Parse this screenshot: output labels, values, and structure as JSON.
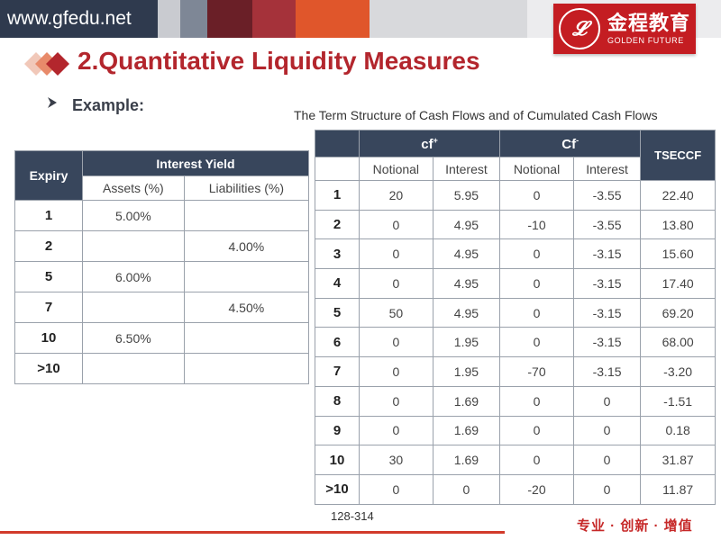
{
  "header": {
    "site": "www.gfedu.net",
    "logo_cn": "金程教育",
    "logo_en": "GOLDEN FUTURE",
    "logo_seal": "𝓛"
  },
  "title": "2.Quantitative Liquidity Measures",
  "example_label": "Example:",
  "caption": "The Term Structure of Cash Flows and of Cumulated Cash Flows",
  "left_table": {
    "col_expiry": "Expiry",
    "col_group": "Interest Yield",
    "col_assets": "Assets (%)",
    "col_liabilities": "Liabilities (%)",
    "rows": [
      {
        "expiry": "1",
        "assets": "5.00%",
        "liabilities": ""
      },
      {
        "expiry": "2",
        "assets": "",
        "liabilities": "4.00%"
      },
      {
        "expiry": "5",
        "assets": "6.00%",
        "liabilities": ""
      },
      {
        "expiry": "7",
        "assets": "",
        "liabilities": "4.50%"
      },
      {
        "expiry": "10",
        "assets": "6.50%",
        "liabilities": ""
      },
      {
        "expiry": ">10",
        "assets": "",
        "liabilities": ""
      }
    ]
  },
  "right_table": {
    "group_cf_plus": "cf",
    "group_cf_plus_sup": "+",
    "group_cf_minus": "Cf",
    "group_cf_minus_sup": "-",
    "col_tseccf": "TSECCF",
    "col_notional": "Notional",
    "col_interest": "Interest",
    "rows": [
      [
        "1",
        "20",
        "5.95",
        "0",
        "-3.55",
        "22.40"
      ],
      [
        "2",
        "0",
        "4.95",
        "-10",
        "-3.55",
        "13.80"
      ],
      [
        "3",
        "0",
        "4.95",
        "0",
        "-3.15",
        "15.60"
      ],
      [
        "4",
        "0",
        "4.95",
        "0",
        "-3.15",
        "17.40"
      ],
      [
        "5",
        "50",
        "4.95",
        "0",
        "-3.15",
        "69.20"
      ],
      [
        "6",
        "0",
        "1.95",
        "0",
        "-3.15",
        "68.00"
      ],
      [
        "7",
        "0",
        "1.95",
        "-70",
        "-3.15",
        "-3.20"
      ],
      [
        "8",
        "0",
        "1.69",
        "0",
        "0",
        "-1.51"
      ],
      [
        "9",
        "0",
        "1.69",
        "0",
        "0",
        "0.18"
      ],
      [
        "10",
        "30",
        "1.69",
        "0",
        "0",
        "31.87"
      ],
      [
        ">10",
        "0",
        "0",
        "-20",
        "0",
        "11.87"
      ]
    ]
  },
  "page_number": "128-314",
  "slogan": "专业 · 创新 · 增值",
  "colors": {
    "title_red": "#b3262d",
    "header_navy": "#38465c",
    "brand_red": "#c41d22"
  }
}
